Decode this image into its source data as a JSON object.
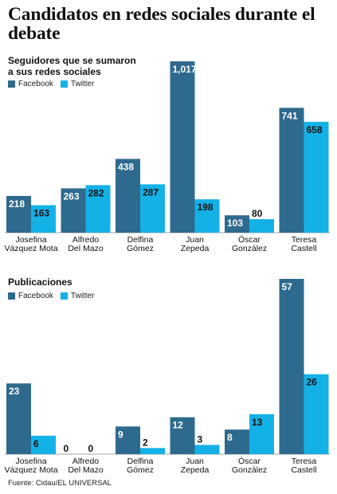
{
  "title": "Candidatos en redes sociales durante el debate",
  "source": "Fuente: Cidau/EL UNIVERSAL",
  "colors": {
    "facebook": "#2e6a8e",
    "twitter": "#14b1e7",
    "label_light": "#ffffff",
    "label_dark": "#111111"
  },
  "chart_data": [
    {
      "type": "bar",
      "title": "Seguidores que se sumaron a sus redes sociales",
      "title_lines": [
        "Seguidores que se sumaron",
        "a sus redes sociales"
      ],
      "categories": [
        "Josefina Vázquez Mota",
        "Alfredo Del Mazo",
        "Delfina Gómez",
        "Juan Zepeda",
        "Óscar González",
        "Teresa Castell"
      ],
      "category_lines": [
        [
          "Josefina",
          "Vázquez Mota"
        ],
        [
          "Alfredo",
          "Del Mazo"
        ],
        [
          "Delfina",
          "Gómez"
        ],
        [
          "Juan",
          "Zepeda"
        ],
        [
          "Óscar",
          "González"
        ],
        [
          "Teresa",
          "Castell"
        ]
      ],
      "series": [
        {
          "name": "Facebook",
          "values": [
            218,
            263,
            438,
            1017,
            103,
            741
          ],
          "labels": [
            "218",
            "263",
            "438",
            "1,017",
            "103",
            "741"
          ]
        },
        {
          "name": "Twitter",
          "values": [
            163,
            282,
            287,
            198,
            80,
            658
          ],
          "labels": [
            "163",
            "282",
            "287",
            "198",
            "80",
            "658"
          ]
        }
      ],
      "legend": "top-left",
      "grid": false
    },
    {
      "type": "bar",
      "title": "Publicaciones",
      "title_lines": [
        "Publicaciones"
      ],
      "categories": [
        "Josefina Vázquez Mota",
        "Alfredo Del Mazo",
        "Delfina Gómez",
        "Juan Zepeda",
        "Óscar González",
        "Teresa Castell"
      ],
      "category_lines": [
        [
          "Josefina",
          "Vázquez Mota"
        ],
        [
          "Alfredo",
          "Del Mazo"
        ],
        [
          "Delfina",
          "Gómez"
        ],
        [
          "Juan",
          "Zepeda"
        ],
        [
          "Óscar",
          "González"
        ],
        [
          "Teresa",
          "Castell"
        ]
      ],
      "series": [
        {
          "name": "Facebook",
          "values": [
            23,
            0,
            9,
            12,
            8,
            57
          ],
          "labels": [
            "23",
            "0",
            "9",
            "12",
            "8",
            "57"
          ]
        },
        {
          "name": "Twitter",
          "values": [
            6,
            0,
            2,
            3,
            13,
            26
          ],
          "labels": [
            "6",
            "0",
            "2",
            "3",
            "13",
            "26"
          ]
        }
      ],
      "legend": "top-left",
      "grid": false
    }
  ]
}
